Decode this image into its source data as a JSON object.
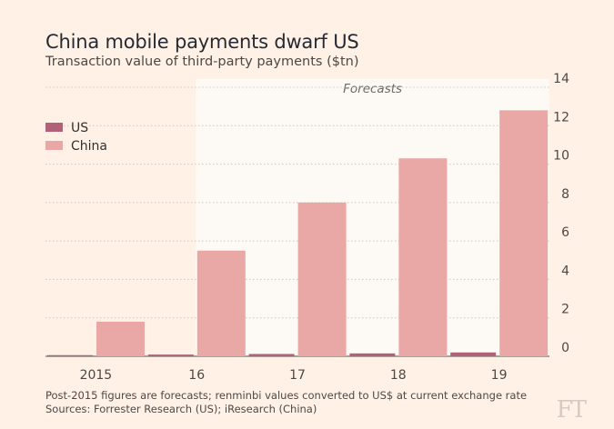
{
  "title": "China mobile payments dwarf US",
  "subtitle": "Transaction value of third-party payments ($tn)",
  "footnote": "Post-2015 figures are forecasts; renminbi values converted to US$ at current exchange rate",
  "source": "Sources: Forrester Research (US); iResearch (China)",
  "logo": "FT",
  "colors": {
    "background": "#fff1e5",
    "forecast_band": "#fdf9f4",
    "gridline": "#cec6b9",
    "us": "#b06378",
    "china": "#e9a8a6"
  },
  "chart_data": {
    "type": "bar",
    "title": "China mobile payments dwarf US",
    "subtitle": "Transaction value of third-party payments ($tn)",
    "categories": [
      "2015",
      "16",
      "17",
      "18",
      "19"
    ],
    "series": [
      {
        "name": "US",
        "values": [
          0.06,
          0.09,
          0.12,
          0.15,
          0.2
        ]
      },
      {
        "name": "China",
        "values": [
          1.8,
          5.5,
          8.0,
          10.3,
          12.8
        ]
      }
    ],
    "ylim": [
      0,
      14
    ],
    "yticks": [
      0,
      2,
      4,
      6,
      8,
      10,
      12,
      14
    ],
    "y_axis_side": "right",
    "grid": true,
    "legend": "top-left",
    "annotations": [
      {
        "label": "Forecasts",
        "from_category": "16",
        "to_category": "19"
      }
    ]
  }
}
